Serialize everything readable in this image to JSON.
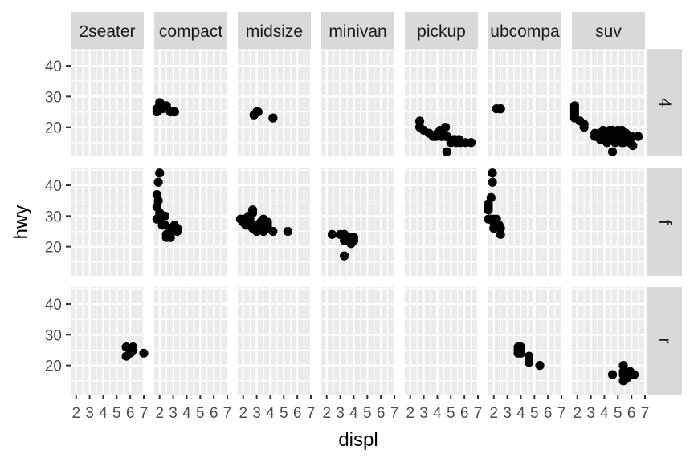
{
  "chart_data": {
    "type": "scatter",
    "facet": "grid",
    "xlabel": "displ",
    "ylabel": "hwy",
    "xlim": [
      1.6,
      7.0
    ],
    "ylim": [
      10.5,
      45.5
    ],
    "x_ticks": [
      2,
      3,
      4,
      5,
      6,
      7
    ],
    "y_ticks": [
      20,
      30,
      40
    ],
    "grid": true,
    "col_strips": [
      "2seater",
      "compact",
      "midsize",
      "minivan",
      "pickup",
      "ubcompa",
      "suv"
    ],
    "row_strips": [
      "4",
      "f",
      "r"
    ],
    "colors": {
      "panel_bg": "#ebebeb",
      "grid": "#ffffff",
      "strip_bg": "#d9d9d9",
      "point": "#000000",
      "tick": "#333333"
    },
    "panels": [
      {
        "row": "4",
        "col": "compact",
        "points": [
          [
            1.8,
            26
          ],
          [
            1.8,
            25
          ],
          [
            2.0,
            28
          ],
          [
            2.0,
            27
          ],
          [
            2.8,
            25
          ],
          [
            2.8,
            25
          ],
          [
            3.1,
            25
          ],
          [
            3.1,
            25
          ],
          [
            2.0,
            26
          ],
          [
            2.4,
            27
          ],
          [
            2.5,
            27
          ],
          [
            2.2,
            26
          ]
        ]
      },
      {
        "row": "4",
        "col": "midsize",
        "points": [
          [
            2.8,
            24
          ],
          [
            3.1,
            25
          ],
          [
            3.0,
            25
          ],
          [
            4.2,
            23
          ]
        ]
      },
      {
        "row": "4",
        "col": "pickup",
        "points": [
          [
            2.7,
            20
          ],
          [
            2.7,
            22
          ],
          [
            3.4,
            18
          ],
          [
            3.7,
            17
          ],
          [
            3.9,
            17
          ],
          [
            4.0,
            18
          ],
          [
            4.2,
            19
          ],
          [
            4.3,
            17
          ],
          [
            4.6,
            17
          ],
          [
            4.7,
            17
          ],
          [
            4.7,
            12
          ],
          [
            4.7,
            17
          ],
          [
            5.2,
            16
          ],
          [
            5.3,
            16
          ],
          [
            5.6,
            16
          ],
          [
            5.4,
            15
          ],
          [
            5.7,
            15
          ],
          [
            6.1,
            15
          ],
          [
            6.5,
            15
          ],
          [
            3.0,
            19
          ],
          [
            4.6,
            20
          ],
          [
            5.0,
            15
          ]
        ]
      },
      {
        "row": "4",
        "col": "ubcompa",
        "points": [
          [
            2.5,
            26
          ],
          [
            2.5,
            26
          ],
          [
            2.2,
            26
          ]
        ]
      },
      {
        "row": "4",
        "col": "suv",
        "points": [
          [
            1.8,
            27
          ],
          [
            1.8,
            26
          ],
          [
            1.8,
            25
          ],
          [
            1.8,
            24
          ],
          [
            1.8,
            23
          ],
          [
            2.2,
            22
          ],
          [
            2.5,
            20
          ],
          [
            2.5,
            21
          ],
          [
            3.3,
            17
          ],
          [
            3.3,
            18
          ],
          [
            3.7,
            18
          ],
          [
            4.0,
            18
          ],
          [
            4.0,
            17
          ],
          [
            4.2,
            17
          ],
          [
            4.4,
            16
          ],
          [
            4.6,
            19
          ],
          [
            4.7,
            17
          ],
          [
            4.7,
            16
          ],
          [
            4.8,
            15
          ],
          [
            5.0,
            17
          ],
          [
            5.2,
            16
          ],
          [
            5.3,
            19
          ],
          [
            5.4,
            15
          ],
          [
            5.6,
            18
          ],
          [
            5.7,
            16
          ],
          [
            5.9,
            15
          ],
          [
            6.1,
            14
          ],
          [
            6.5,
            17
          ],
          [
            4.6,
            12
          ],
          [
            5.0,
            19
          ],
          [
            5.4,
            17
          ],
          [
            6.0,
            17
          ],
          [
            5.3,
            15
          ],
          [
            4.2,
            15
          ],
          [
            3.9,
            19
          ],
          [
            4.4,
            19
          ],
          [
            3.7,
            16
          ]
        ]
      },
      {
        "row": "f",
        "col": "compact",
        "points": [
          [
            1.8,
            29
          ],
          [
            1.8,
            29
          ],
          [
            2.0,
            31
          ],
          [
            2.0,
            30
          ],
          [
            2.8,
            26
          ],
          [
            2.8,
            26
          ],
          [
            3.1,
            27
          ],
          [
            2.4,
            27
          ],
          [
            2.4,
            30
          ],
          [
            2.0,
            44
          ],
          [
            1.9,
            41
          ],
          [
            1.9,
            35
          ],
          [
            1.8,
            37
          ],
          [
            1.8,
            33
          ],
          [
            2.0,
            29
          ],
          [
            2.2,
            27
          ],
          [
            2.5,
            24
          ],
          [
            2.5,
            23
          ],
          [
            3.3,
            25
          ],
          [
            3.3,
            26
          ],
          [
            2.0,
            30
          ],
          [
            2.8,
            23
          ]
        ]
      },
      {
        "row": "f",
        "col": "midsize",
        "points": [
          [
            1.8,
            29
          ],
          [
            2.0,
            28
          ],
          [
            2.0,
            29
          ],
          [
            2.2,
            27
          ],
          [
            2.4,
            29
          ],
          [
            2.4,
            30
          ],
          [
            2.5,
            28
          ],
          [
            2.5,
            29
          ],
          [
            2.7,
            31
          ],
          [
            2.7,
            32
          ],
          [
            2.8,
            26
          ],
          [
            3.0,
            26
          ],
          [
            3.0,
            25
          ],
          [
            3.1,
            27
          ],
          [
            3.3,
            27
          ],
          [
            3.5,
            26
          ],
          [
            3.5,
            29
          ],
          [
            3.6,
            26
          ],
          [
            3.8,
            26
          ],
          [
            3.8,
            27
          ],
          [
            3.8,
            28
          ],
          [
            3.5,
            25
          ],
          [
            4.2,
            25
          ],
          [
            5.3,
            25
          ],
          [
            3.3,
            28
          ],
          [
            3.5,
            27
          ],
          [
            2.7,
            26
          ],
          [
            2.4,
            27
          ]
        ]
      },
      {
        "row": "f",
        "col": "minivan",
        "points": [
          [
            2.4,
            24
          ],
          [
            3.0,
            24
          ],
          [
            3.3,
            22
          ],
          [
            3.3,
            24
          ],
          [
            3.3,
            17
          ],
          [
            3.8,
            22
          ],
          [
            3.8,
            21
          ],
          [
            4.0,
            23
          ],
          [
            3.3,
            24
          ],
          [
            3.8,
            23
          ],
          [
            4.0,
            22
          ]
        ]
      },
      {
        "row": "f",
        "col": "ubcompa",
        "points": [
          [
            1.6,
            33
          ],
          [
            1.6,
            32
          ],
          [
            1.6,
            29
          ],
          [
            1.6,
            32
          ],
          [
            1.6,
            34
          ],
          [
            1.7,
            29
          ],
          [
            1.8,
            29
          ],
          [
            1.8,
            36
          ],
          [
            1.9,
            44
          ],
          [
            1.9,
            41
          ],
          [
            2.0,
            29
          ],
          [
            2.0,
            26
          ],
          [
            2.2,
            29
          ],
          [
            2.5,
            26
          ],
          [
            2.5,
            24
          ],
          [
            2.4,
            27
          ],
          [
            2.0,
            28
          ]
        ]
      },
      {
        "row": "r",
        "col": "2seater",
        "points": [
          [
            5.7,
            26
          ],
          [
            5.7,
            23
          ],
          [
            6.2,
            26
          ],
          [
            6.2,
            25
          ],
          [
            7.0,
            24
          ],
          [
            6.0,
            24
          ]
        ]
      },
      {
        "row": "r",
        "col": "ubcompa",
        "points": [
          [
            3.8,
            26
          ],
          [
            3.8,
            25
          ],
          [
            4.0,
            26
          ],
          [
            4.0,
            24
          ],
          [
            4.6,
            23
          ],
          [
            4.6,
            22
          ],
          [
            4.6,
            21
          ],
          [
            5.4,
            20
          ],
          [
            4.0,
            25
          ],
          [
            3.8,
            24
          ]
        ]
      },
      {
        "row": "r",
        "col": "suv",
        "points": [
          [
            4.6,
            17
          ],
          [
            5.4,
            17
          ],
          [
            5.4,
            15
          ],
          [
            5.4,
            18
          ],
          [
            5.4,
            20
          ],
          [
            6.0,
            17
          ],
          [
            6.2,
            17
          ],
          [
            5.7,
            16
          ],
          [
            5.7,
            17
          ],
          [
            5.9,
            18
          ]
        ]
      }
    ]
  }
}
